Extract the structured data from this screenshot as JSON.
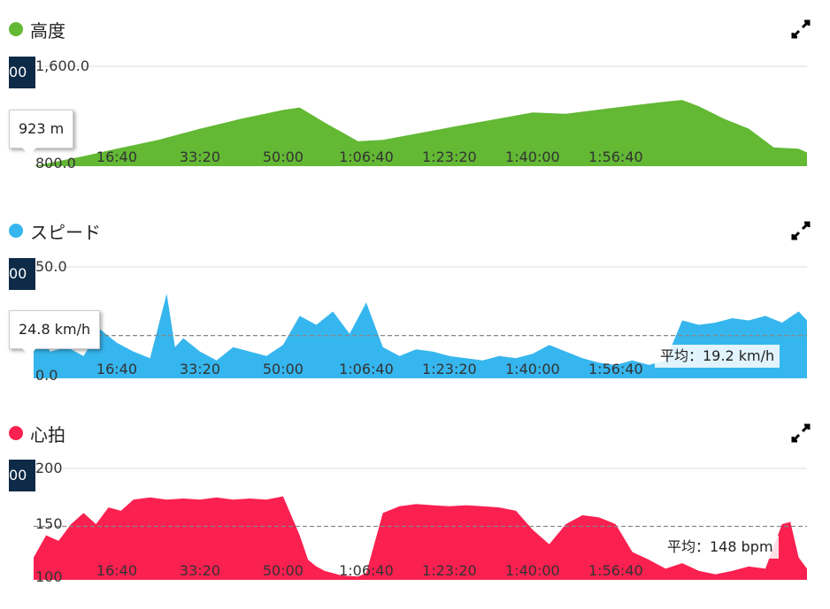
{
  "panels": [
    {
      "key": "altitude",
      "title": "高度",
      "color": "#63b834",
      "tooltip": "923 m",
      "navy_label": "00",
      "y_top_label": "1,600.0",
      "y_bottom_label": "800.0"
    },
    {
      "key": "speed",
      "title": "スピード",
      "color": "#36b6ee",
      "tooltip": "24.8 km/h",
      "navy_label": "00",
      "y_top_label": "50.0",
      "y_bottom_label": "0.0",
      "avg_label": "平均：19.2 km/h"
    },
    {
      "key": "heart",
      "title": "心拍",
      "color": "#fa2050",
      "navy_label": "00",
      "y_top_label": "200",
      "y_mid_label": "150",
      "y_bottom_label": "100",
      "avg_label": "平均：148 bpm"
    }
  ],
  "x_ticks": [
    "16:40",
    "33:20",
    "50:00",
    "1:06:40",
    "1:23:20",
    "1:40:00",
    "1:56:40"
  ],
  "chart_data": [
    {
      "type": "area",
      "title": "高度",
      "ylim": [
        800,
        1600
      ],
      "x_unit": "seconds",
      "x": [
        0,
        300,
        600,
        1000,
        1500,
        2000,
        2500,
        3000,
        3200,
        3500,
        3900,
        4200,
        4600,
        5000,
        5500,
        6000,
        6400,
        7000,
        7500,
        7800,
        8000,
        8300,
        8600,
        8900,
        9200,
        9300
      ],
      "y": [
        800,
        840,
        880,
        940,
        1010,
        1100,
        1180,
        1250,
        1270,
        1150,
        1000,
        1010,
        1060,
        1110,
        1170,
        1230,
        1220,
        1270,
        1310,
        1330,
        1280,
        1180,
        1100,
        950,
        940,
        910
      ]
    },
    {
      "type": "area",
      "title": "スピード",
      "ylim": [
        0,
        50
      ],
      "average": 19.2,
      "x_unit": "seconds",
      "x": [
        0,
        200,
        400,
        600,
        800,
        1000,
        1200,
        1400,
        1600,
        1700,
        1800,
        2000,
        2200,
        2400,
        2600,
        2800,
        3000,
        3200,
        3400,
        3600,
        3800,
        4000,
        4200,
        4400,
        4600,
        4800,
        5000,
        5200,
        5400,
        5600,
        5800,
        6000,
        6200,
        6400,
        6600,
        6800,
        7000,
        7200,
        7400,
        7600,
        7800,
        8000,
        8200,
        8400,
        8600,
        8800,
        9000,
        9200,
        9300
      ],
      "y": [
        25,
        12,
        14,
        10,
        22,
        16,
        12,
        9,
        38,
        14,
        18,
        12,
        8,
        14,
        12,
        10,
        15,
        28,
        24,
        30,
        20,
        34,
        14,
        10,
        13,
        12,
        10,
        9,
        8,
        10,
        9,
        11,
        15,
        12,
        9,
        7,
        6,
        8,
        6,
        8,
        26,
        24,
        25,
        27,
        26,
        28,
        25,
        30,
        26
      ]
    },
    {
      "type": "area",
      "title": "心拍",
      "ylim": [
        100,
        200
      ],
      "average": 148,
      "x_unit": "seconds",
      "x": [
        0,
        150,
        300,
        450,
        600,
        750,
        900,
        1050,
        1200,
        1400,
        1600,
        1800,
        2000,
        2200,
        2400,
        2600,
        2800,
        3000,
        3200,
        3300,
        3400,
        3500,
        3700,
        3900,
        4000,
        4200,
        4400,
        4600,
        4800,
        5000,
        5200,
        5400,
        5600,
        5800,
        6000,
        6200,
        6400,
        6600,
        6800,
        7000,
        7200,
        7400,
        7600,
        7800,
        8000,
        8200,
        8400,
        8600,
        8800,
        9000,
        9100,
        9200,
        9300
      ],
      "y": [
        120,
        140,
        135,
        150,
        160,
        150,
        165,
        162,
        172,
        174,
        172,
        173,
        172,
        174,
        172,
        173,
        172,
        175,
        140,
        118,
        112,
        108,
        104,
        103,
        106,
        160,
        166,
        168,
        167,
        166,
        167,
        166,
        165,
        162,
        145,
        132,
        150,
        158,
        156,
        150,
        125,
        118,
        110,
        115,
        108,
        105,
        108,
        112,
        110,
        150,
        152,
        120,
        110
      ]
    }
  ]
}
